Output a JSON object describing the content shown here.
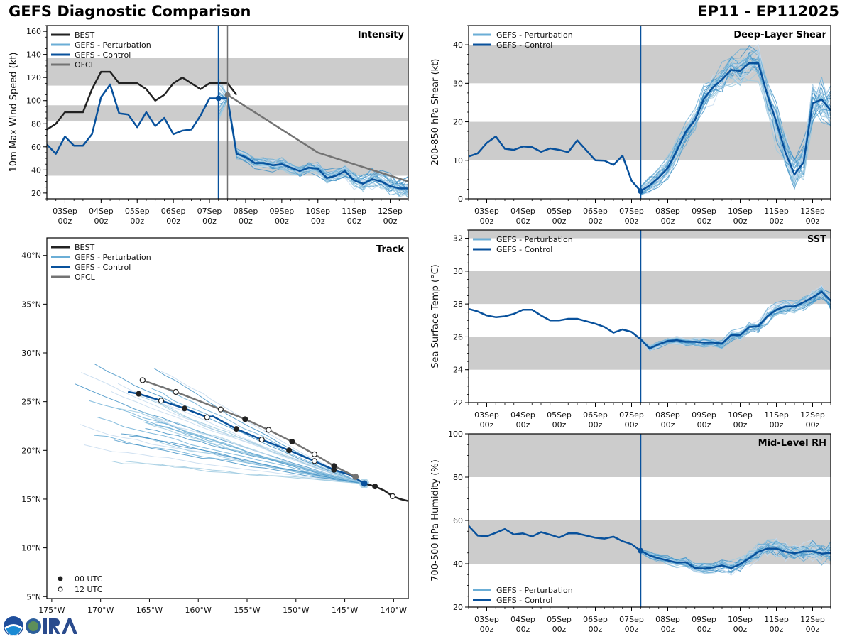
{
  "header": {
    "title": "GEFS Diagnostic Comparison",
    "storm_id": "EP11 - EP112025"
  },
  "colors": {
    "best": "#222222",
    "perturbation": "#6baed6",
    "control": "#08519c",
    "ofcl": "#737373",
    "band": "#cccccc"
  },
  "legend": {
    "best": "BEST",
    "perturbation": "GEFS - Perturbation",
    "control": "GEFS - Control",
    "ofcl": "OFCL",
    "utc00": "00 UTC",
    "utc12": "12 UTC"
  },
  "time_ticks": [
    {
      "l1": "03Sep",
      "l2": "00z"
    },
    {
      "l1": "04Sep",
      "l2": "00z"
    },
    {
      "l1": "05Sep",
      "l2": "00z"
    },
    {
      "l1": "06Sep",
      "l2": "00z"
    },
    {
      "l1": "07Sep",
      "l2": "00z"
    },
    {
      "l1": "08Sep",
      "l2": "00z"
    },
    {
      "l1": "09Sep",
      "l2": "00z"
    },
    {
      "l1": "10Sep",
      "l2": "00z"
    },
    {
      "l1": "11Sep",
      "l2": "00z"
    },
    {
      "l1": "12Sep",
      "l2": "00z"
    }
  ],
  "chart_data": [
    {
      "id": "intensity",
      "type": "line",
      "title": "Intensity",
      "ylabel": "10m Max Wind Speed (kt)",
      "xlabel": "",
      "x_units": "days since 03Sep 00z",
      "xlim": [
        -0.5,
        9.5
      ],
      "ylim": [
        15,
        165
      ],
      "yticks": [
        20,
        40,
        60,
        80,
        100,
        120,
        140,
        160
      ],
      "bands": [
        [
          35,
          65
        ],
        [
          82,
          96
        ],
        [
          113,
          137
        ]
      ],
      "init_line_x": 4.25,
      "ofcl_line_x": 4.5,
      "series": [
        {
          "name": "BEST",
          "x_step": 0.25,
          "x0": -0.5,
          "values": [
            75,
            80,
            90,
            90,
            90,
            110,
            125,
            125,
            115,
            115,
            115,
            110,
            100,
            105,
            115,
            120,
            115,
            110,
            115,
            115,
            115,
            105
          ]
        },
        {
          "name": "GEFS - Control",
          "x_step": 0.25,
          "x0": -0.5,
          "values": [
            62,
            54,
            69,
            61,
            61,
            71,
            103,
            114,
            89,
            88,
            77,
            90,
            78,
            85,
            71,
            74,
            75,
            87,
            102,
            102,
            102,
            54,
            51,
            46,
            46,
            44,
            45,
            42,
            39,
            42,
            41,
            33,
            35,
            39,
            31,
            28,
            32,
            30,
            26,
            24,
            24,
            26
          ]
        },
        {
          "name": "OFCL",
          "x": [
            4.5,
            4.75,
            5.0,
            6.0,
            7.0,
            8.0,
            9.5
          ],
          "values": [
            105,
            100,
            95,
            75,
            55,
            45,
            30
          ]
        }
      ]
    },
    {
      "id": "shear",
      "type": "line",
      "title": "Deep-Layer Shear",
      "ylabel": "200-850 hPa Shear (kt)",
      "xlim": [
        -0.5,
        9.5
      ],
      "ylim": [
        0,
        45
      ],
      "yticks": [
        0,
        10,
        20,
        30,
        40
      ],
      "bands": [
        [
          10,
          20
        ],
        [
          30,
          40
        ]
      ],
      "init_line_x": 4.25,
      "series": [
        {
          "name": "GEFS - Control",
          "x_step": 0.25,
          "x0": -0.5,
          "values": [
            11,
            11.8,
            14.5,
            16.2,
            13,
            12.7,
            13.6,
            13.4,
            12.2,
            13.1,
            12.7,
            12.1,
            15.2,
            12.6,
            10,
            9.9,
            8.8,
            11.2,
            4.7,
            2,
            3.5,
            5.5,
            8,
            12.5,
            17.5,
            20.5,
            26,
            29,
            31,
            33.5,
            33.2,
            35.3,
            35.2,
            27,
            20,
            12,
            6.3,
            9.5,
            24.8,
            25.8,
            23,
            19
          ]
        }
      ]
    },
    {
      "id": "sst",
      "type": "line",
      "title": "SST",
      "ylabel": "Sea Surface Temp (°C)",
      "xlim": [
        -0.5,
        9.5
      ],
      "ylim": [
        22,
        32.5
      ],
      "yticks": [
        22,
        24,
        26,
        28,
        30,
        32
      ],
      "bands": [
        [
          24,
          26
        ],
        [
          28,
          30
        ],
        [
          32,
          33
        ]
      ],
      "init_line_x": 4.25,
      "series": [
        {
          "name": "GEFS - Control",
          "x_step": 0.25,
          "x0": -0.5,
          "values": [
            27.7,
            27.55,
            27.3,
            27.2,
            27.25,
            27.4,
            27.65,
            27.65,
            27.3,
            27.0,
            27.0,
            27.1,
            27.1,
            26.95,
            26.8,
            26.6,
            26.25,
            26.45,
            26.3,
            25.85,
            25.3,
            25.55,
            25.75,
            25.8,
            25.7,
            25.7,
            25.65,
            25.65,
            25.6,
            26.1,
            26.1,
            26.6,
            26.65,
            27.25,
            27.65,
            27.85,
            27.85,
            28.1,
            28.4,
            28.75,
            28.2,
            27.9
          ]
        }
      ]
    },
    {
      "id": "rh",
      "type": "line",
      "title": "Mid-Level RH",
      "ylabel": "700-500 hPa Humidity (%)",
      "xlim": [
        -0.5,
        9.5
      ],
      "ylim": [
        20,
        100
      ],
      "yticks": [
        20,
        40,
        60,
        80,
        100
      ],
      "bands": [
        [
          40,
          60
        ],
        [
          80,
          100
        ]
      ],
      "init_line_x": 4.25,
      "series": [
        {
          "name": "GEFS - Control",
          "x_step": 0.25,
          "x0": -0.5,
          "values": [
            57.5,
            53,
            52.7,
            54.3,
            56,
            53.5,
            54,
            52.6,
            54.6,
            53.4,
            52.1,
            54,
            54,
            53,
            52,
            51.6,
            52.5,
            50.4,
            49,
            46,
            43.8,
            42.5,
            41.5,
            40.5,
            40.7,
            38,
            37.8,
            38.3,
            39.2,
            38,
            39.8,
            42.5,
            45.5,
            47,
            47,
            45.5,
            44.8,
            45.7,
            45.7,
            44.7,
            45
          ]
        }
      ]
    },
    {
      "id": "track",
      "type": "line",
      "title": "Track",
      "xlim": [
        -175.5,
        -138.5
      ],
      "ylim": [
        4.8,
        41.8
      ],
      "xticks": [
        "175°W",
        "170°W",
        "165°W",
        "160°W",
        "155°W",
        "150°W",
        "145°W",
        "140°W"
      ],
      "xtick_values": [
        -175,
        -170,
        -165,
        -160,
        -155,
        -150,
        -145,
        -140
      ],
      "yticks": [
        "5°N",
        "10°N",
        "15°N",
        "20°N",
        "25°N",
        "30°N",
        "35°N",
        "40°N"
      ],
      "ytick_values": [
        5,
        10,
        15,
        20,
        25,
        30,
        35,
        40
      ],
      "series": [
        {
          "name": "BEST",
          "lon": [
            -138.5,
            -139.3,
            -140.1,
            -141.0,
            -141.9,
            -143.0
          ],
          "lat": [
            14.8,
            15.0,
            15.3,
            15.9,
            16.3,
            16.6
          ]
        },
        {
          "name": "GEFS - Control",
          "lon": [
            -143.0,
            -144.5,
            -146.1,
            -148.1,
            -150.7,
            -153.5,
            -156.1,
            -158.5,
            -159.1,
            -161.4,
            -163.8,
            -166.1,
            -167.2
          ],
          "lat": [
            16.6,
            17.5,
            18.0,
            18.9,
            20.0,
            21.1,
            22.2,
            23.5,
            23.4,
            24.3,
            25.1,
            25.8,
            26.0
          ]
        },
        {
          "name": "OFCL",
          "lon": [
            -143.9,
            -146.1,
            -148.1,
            -150.4,
            -152.8,
            -155.2,
            -157.7,
            -162.3,
            -165.7
          ],
          "lat": [
            17.3,
            18.4,
            19.6,
            20.9,
            22.1,
            23.2,
            24.2,
            26.0,
            27.2
          ]
        }
      ],
      "markers_00utc": [
        [
          -141.9,
          16.3
        ],
        [
          -146.1,
          18.0
        ],
        [
          -150.7,
          20.0
        ],
        [
          -156.1,
          22.2
        ],
        [
          -161.4,
          24.3
        ],
        [
          -166.1,
          25.8
        ],
        [
          -146.1,
          18.4
        ],
        [
          -150.4,
          20.9
        ],
        [
          -155.2,
          23.2
        ]
      ],
      "markers_12utc": [
        [
          -140.1,
          15.3
        ],
        [
          -148.1,
          18.9
        ],
        [
          -153.5,
          21.1
        ],
        [
          -159.1,
          23.4
        ],
        [
          -163.8,
          25.1
        ],
        [
          -148.1,
          19.6
        ],
        [
          -152.8,
          22.1
        ],
        [
          -157.7,
          24.2
        ],
        [
          -162.3,
          26.0
        ],
        [
          -165.7,
          27.2
        ]
      ]
    }
  ]
}
